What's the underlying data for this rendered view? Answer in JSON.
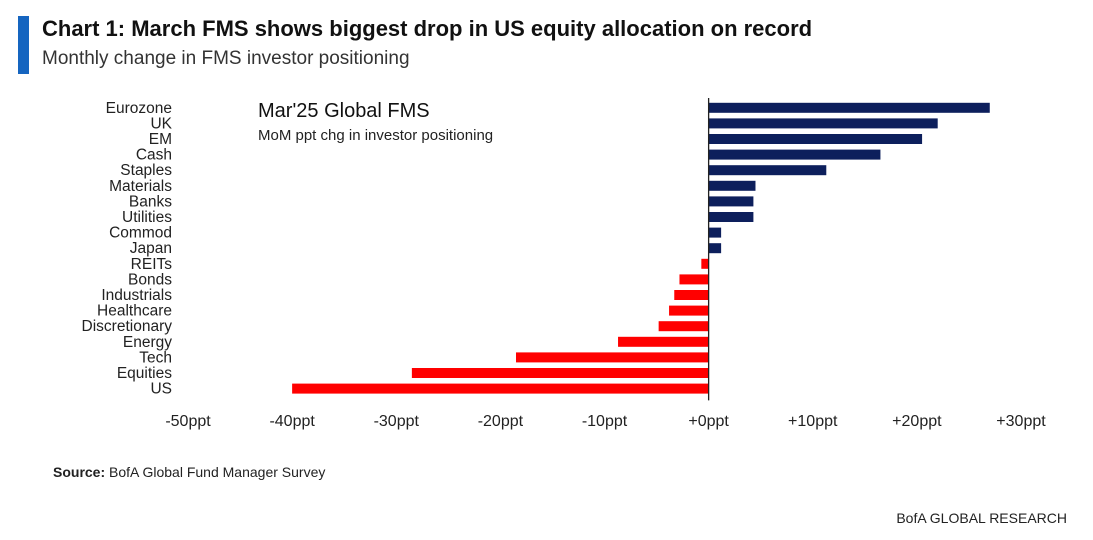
{
  "header": {
    "title": "Chart 1: March FMS shows biggest drop in US equity allocation on record",
    "subtitle": "Monthly change in FMS investor positioning",
    "accent_color": "#1565c0"
  },
  "chart_data": {
    "type": "bar",
    "orientation": "horizontal",
    "title": "Mar'25 Global FMS",
    "subtitle": "MoM ppt chg in investor positioning",
    "categories": [
      "Eurozone",
      "UK",
      "EM",
      "Cash",
      "Staples",
      "Materials",
      "Banks",
      "Utilities",
      "Commod",
      "Japan",
      "REITs",
      "Bonds",
      "Industrials",
      "Healthcare",
      "Discretionary",
      "Energy",
      "Tech",
      "Equities",
      "US"
    ],
    "values": [
      27,
      22,
      20.5,
      16.5,
      11.3,
      4.5,
      4.3,
      4.3,
      1.2,
      1.2,
      -0.7,
      -2.8,
      -3.3,
      -3.8,
      -4.8,
      -8.7,
      -18.5,
      -28.5,
      -40
    ],
    "positive_color": "#0d1f5c",
    "negative_color": "#ff0000",
    "xlim": [
      -50,
      30
    ],
    "xticks": [
      -50,
      -40,
      -30,
      -20,
      -10,
      0,
      10,
      20,
      30
    ],
    "xtick_labels": [
      "-50ppt",
      "-40ppt",
      "-30ppt",
      "-20ppt",
      "-10ppt",
      "+0ppt",
      "+10ppt",
      "+20ppt",
      "+30ppt"
    ],
    "grid": false,
    "legend": "none"
  },
  "footer": {
    "source_label": "Source:",
    "source_text": " BofA Global Fund Manager Survey",
    "brand": "BofA GLOBAL RESEARCH"
  }
}
